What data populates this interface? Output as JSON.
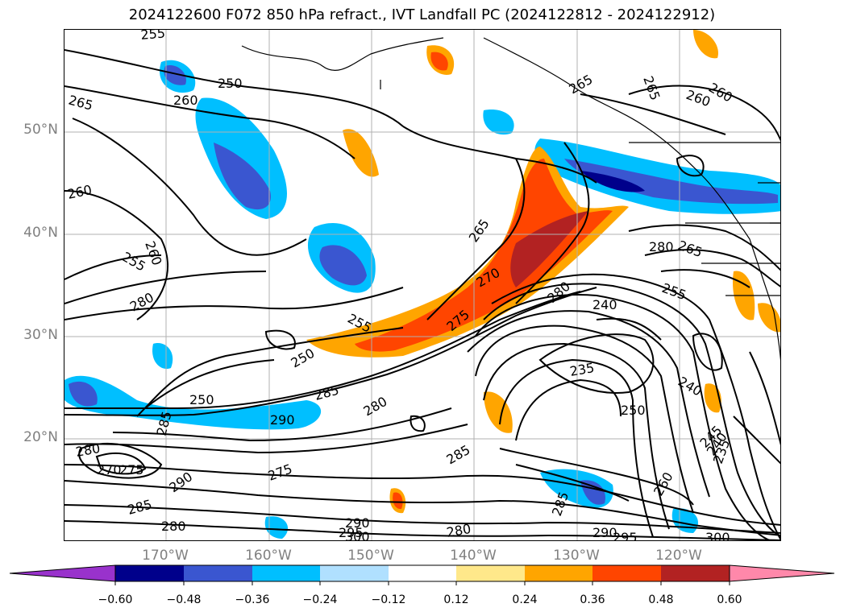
{
  "title": "2024122600 F072 850 hPa refract., IVT Landfall PC (2024122812 - 2024122912)",
  "lat_labels": [
    "50°N",
    "40°N",
    "30°N",
    "20°N"
  ],
  "lon_labels": [
    "170°W",
    "160°W",
    "150°W",
    "140°W",
    "130°W",
    "120°W"
  ],
  "colorbar": {
    "ticks": [
      "−0.60",
      "−0.48",
      "−0.36",
      "−0.24",
      "−0.12",
      "0.12",
      "0.24",
      "0.36",
      "0.48",
      "0.60"
    ],
    "colors": [
      "#9932cc",
      "#00008b",
      "#3a56d0",
      "#00bfff",
      "#b0e0ff",
      "#ffffff",
      "#ffe88a",
      "#ffa500",
      "#ff4500",
      "#b22222",
      "#ff88aa"
    ]
  },
  "contour_labels": [
    "255",
    "250",
    "260",
    "265",
    "265",
    "265",
    "260",
    "260",
    "260",
    "255",
    "280",
    "260",
    "250",
    "255",
    "265",
    "270",
    "275",
    "280",
    "280",
    "265",
    "255",
    "240",
    "235",
    "240",
    "250",
    "250",
    "285",
    "280",
    "290",
    "285",
    "275",
    "270",
    "275",
    "280",
    "285",
    "290",
    "285",
    "280",
    "290",
    "295",
    "300",
    "280",
    "285",
    "260",
    "290",
    "295",
    "300",
    "245",
    "240",
    "235"
  ],
  "colors": {
    "contour": "#000000",
    "gridline": "#b0b0b0",
    "axis_label": "#808080"
  }
}
